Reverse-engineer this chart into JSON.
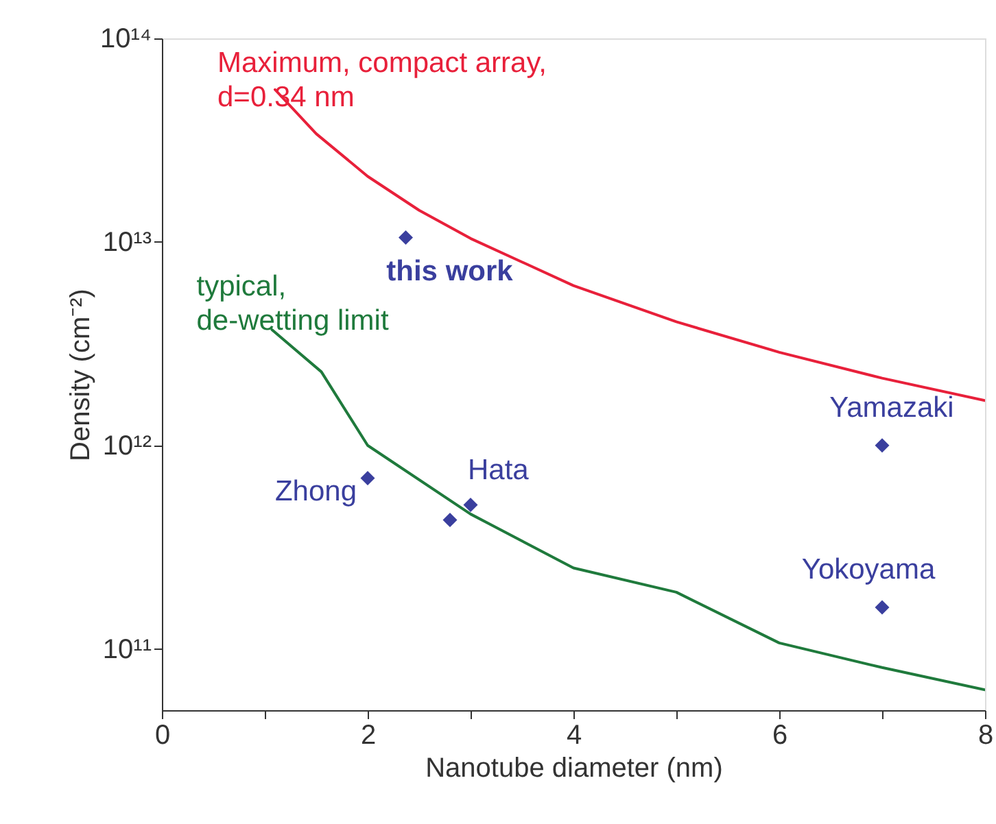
{
  "chart_data": {
    "type": "line",
    "xlabel": "Nanotube diameter (nm)",
    "ylabel": "Density (cm⁻²)",
    "log": "y",
    "grid": false,
    "xlim": [
      0,
      8
    ],
    "xticks": [
      0,
      {
        "value": 1,
        "label": null
      },
      2,
      {
        "value": 3,
        "label": null
      },
      4,
      {
        "value": 5,
        "label": null
      },
      6,
      {
        "value": 7,
        "label": null
      },
      8
    ],
    "ylim": [
      50000000000.0,
      100000000000000.0
    ],
    "yticks": [
      {
        "value": 100000000000.0,
        "label": "10¹¹"
      },
      {
        "value": 1000000000000.0,
        "label": "10¹²"
      },
      {
        "value": 10000000000000.0,
        "label": "10¹³"
      },
      {
        "value": 100000000000000.0,
        "label": "10¹⁴"
      }
    ],
    "series": [
      {
        "name": "Maximum, compact array,\nd=0.34 nm",
        "color": "#e8203a",
        "line_style": "solid",
        "marker": "none",
        "x": [
          1.1,
          1.5,
          2,
          2.5,
          3,
          4,
          5,
          6,
          7,
          8
        ],
        "values": [
          56000000000000.0,
          34000000000000.0,
          21000000000000.0,
          14300000000000.0,
          10400000000000.0,
          6100000000000.0,
          4050000000000.0,
          2870000000000.0,
          2140000000000.0,
          1660000000000.0
        ]
      },
      {
        "name": "typical,\nde-wetting limit",
        "color": "#1f7a3c",
        "line_style": "solid",
        "marker": "none",
        "x": [
          1.07,
          1.55,
          2,
          3,
          4,
          5,
          6,
          7,
          8
        ],
        "values": [
          3700000000000.0,
          2300000000000.0,
          1000000000000.0,
          460000000000.0,
          250000000000.0,
          190000000000.0,
          107000000000.0,
          81000000000.0,
          63000000000.0
        ]
      },
      {
        "name": "this work",
        "type": "scatter",
        "color": "#3a3f9e",
        "marker": "diamond",
        "x": [
          2.37
        ],
        "values": [
          10500000000000.0
        ]
      },
      {
        "name": "Zhong",
        "type": "scatter",
        "color": "#3a3f9e",
        "marker": "diamond",
        "x": [
          2.0
        ],
        "values": [
          690000000000.0
        ]
      },
      {
        "name": "Hata",
        "type": "scatter",
        "color": "#3a3f9e",
        "marker": "diamond",
        "x": [
          2.8,
          3.0
        ],
        "values": [
          430000000000.0,
          510000000000.0
        ]
      },
      {
        "name": "Yamazaki",
        "type": "scatter",
        "color": "#3a3f9e",
        "marker": "diamond",
        "x": [
          7.0
        ],
        "values": [
          1000000000000.0
        ]
      },
      {
        "name": "Yokoyama",
        "type": "scatter",
        "color": "#3a3f9e",
        "marker": "diamond",
        "x": [
          7.0
        ],
        "values": [
          160000000000.0
        ]
      }
    ]
  }
}
